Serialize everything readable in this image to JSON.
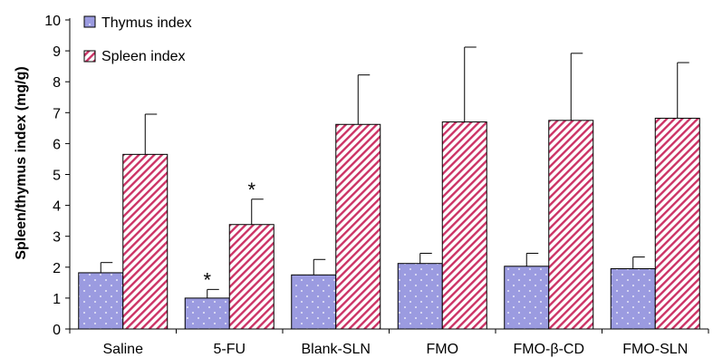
{
  "chart_data": {
    "type": "bar",
    "ylabel": "Spleen/thymus index (mg/g)",
    "ylim": [
      0,
      10
    ],
    "yticks": [
      "0",
      "1",
      "2",
      "3",
      "4",
      "5",
      "6",
      "7",
      "8",
      "9",
      "10"
    ],
    "categories": [
      "Saline",
      "5-FU",
      "Blank-SLN",
      "FMO",
      "FMO-β-CD",
      "FMO-SLN"
    ],
    "series": [
      {
        "name": "Thymus index",
        "values": [
          1.82,
          1.0,
          1.75,
          2.12,
          2.03,
          1.95
        ],
        "errors": [
          0.33,
          0.28,
          0.5,
          0.33,
          0.42,
          0.38
        ],
        "significance": [
          "",
          "*",
          "",
          "",
          "",
          ""
        ],
        "color": "#9b9be0",
        "pattern": "dots"
      },
      {
        "name": "Spleen index",
        "values": [
          5.65,
          3.38,
          6.62,
          6.7,
          6.75,
          6.82
        ],
        "errors": [
          1.3,
          0.82,
          1.6,
          2.42,
          2.17,
          1.8
        ],
        "significance": [
          "",
          "*",
          "",
          "",
          "",
          ""
        ],
        "color": "#cc3366",
        "pattern": "diagonal-stripes"
      }
    ],
    "legend": "top-left",
    "grid": false
  }
}
